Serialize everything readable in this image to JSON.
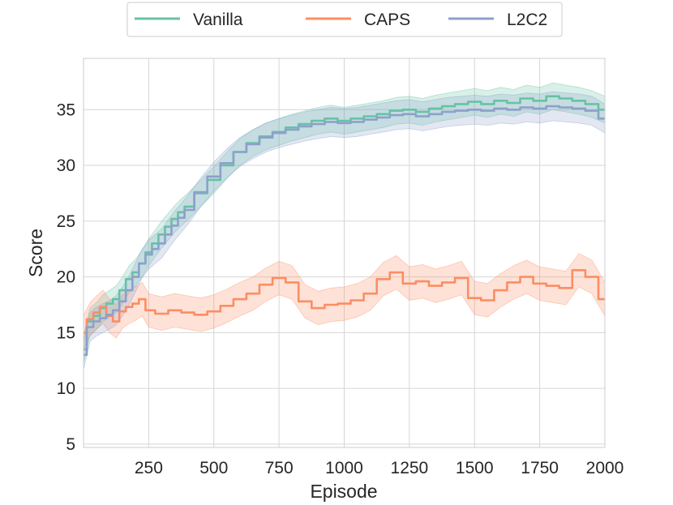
{
  "chart_data": {
    "type": "line",
    "title": "",
    "xlabel": "Episode",
    "ylabel": "Score",
    "xlim": [
      0,
      2000
    ],
    "ylim": [
      4.7,
      39.6
    ],
    "xticks": [
      250,
      500,
      750,
      1000,
      1250,
      1500,
      1750,
      2000
    ],
    "xtick_labels": [
      "250",
      "500",
      "750",
      "1000",
      "1250",
      "1500",
      "1750",
      "2000"
    ],
    "yticks": [
      5,
      10,
      15,
      20,
      25,
      30,
      35
    ],
    "ytick_labels": [
      "5",
      "10",
      "15",
      "20",
      "25",
      "30",
      "35"
    ],
    "grid": true,
    "legend_position": "top-center",
    "series": [
      {
        "name": "Vanilla",
        "color": "#66c2a5",
        "x": [
          0,
          25,
          50,
          75,
          100,
          125,
          150,
          175,
          200,
          225,
          250,
          275,
          300,
          325,
          350,
          375,
          400,
          450,
          500,
          550,
          600,
          650,
          700,
          750,
          800,
          850,
          900,
          950,
          1000,
          1050,
          1100,
          1150,
          1200,
          1250,
          1300,
          1350,
          1400,
          1450,
          1500,
          1550,
          1600,
          1650,
          1700,
          1750,
          1800,
          1850,
          1900,
          1950,
          2000
        ],
        "values": [
          13.5,
          16.0,
          16.5,
          17.2,
          17.6,
          18.0,
          18.8,
          19.8,
          20.4,
          21.2,
          22.2,
          23.0,
          23.8,
          24.5,
          25.2,
          25.8,
          26.3,
          27.5,
          28.7,
          30.0,
          31.2,
          32.0,
          32.6,
          33.0,
          33.4,
          33.7,
          34.0,
          34.2,
          34.0,
          34.2,
          34.4,
          34.6,
          34.9,
          35.0,
          34.8,
          35.1,
          35.3,
          35.5,
          35.7,
          35.5,
          35.8,
          35.6,
          36.0,
          35.8,
          36.2,
          36.0,
          35.8,
          35.5,
          35.0
        ],
        "band_width": 1.2
      },
      {
        "name": "CAPS",
        "color": "#fc8d62",
        "x": [
          0,
          25,
          50,
          75,
          100,
          125,
          150,
          175,
          200,
          225,
          250,
          300,
          350,
          400,
          450,
          500,
          550,
          600,
          650,
          700,
          750,
          800,
          850,
          900,
          950,
          1000,
          1050,
          1100,
          1150,
          1200,
          1250,
          1300,
          1350,
          1400,
          1450,
          1500,
          1550,
          1600,
          1650,
          1700,
          1750,
          1800,
          1850,
          1900,
          1950,
          2000
        ],
        "values": [
          15.0,
          16.2,
          16.8,
          17.3,
          16.5,
          16.0,
          16.9,
          17.3,
          17.6,
          18.0,
          17.0,
          16.7,
          17.0,
          16.8,
          16.6,
          16.9,
          17.4,
          18.0,
          18.5,
          19.3,
          19.9,
          19.5,
          17.8,
          17.2,
          17.5,
          17.6,
          17.9,
          18.5,
          19.8,
          20.4,
          19.4,
          19.6,
          19.2,
          19.5,
          19.9,
          18.1,
          17.9,
          18.8,
          19.5,
          20.0,
          19.4,
          19.2,
          19.0,
          20.6,
          20.0,
          18.0
        ],
        "band_width": 1.5
      },
      {
        "name": "L2C2",
        "color": "#8da0cb",
        "x": [
          0,
          25,
          50,
          75,
          100,
          125,
          150,
          175,
          200,
          225,
          250,
          275,
          300,
          325,
          350,
          375,
          400,
          450,
          500,
          550,
          600,
          650,
          700,
          750,
          800,
          850,
          900,
          950,
          1000,
          1050,
          1100,
          1150,
          1200,
          1250,
          1300,
          1350,
          1400,
          1450,
          1500,
          1550,
          1600,
          1650,
          1700,
          1750,
          1800,
          1850,
          1900,
          1950,
          2000
        ],
        "values": [
          13.0,
          15.5,
          16.0,
          16.3,
          16.6,
          17.0,
          17.8,
          18.8,
          20.0,
          21.2,
          22.0,
          22.5,
          23.0,
          23.8,
          24.6,
          25.3,
          26.0,
          27.6,
          29.0,
          30.2,
          31.2,
          31.9,
          32.5,
          32.9,
          33.2,
          33.5,
          33.7,
          33.9,
          33.8,
          33.9,
          34.1,
          34.3,
          34.5,
          34.6,
          34.4,
          34.6,
          34.8,
          34.9,
          35.0,
          34.9,
          35.1,
          35.0,
          35.2,
          35.1,
          35.3,
          35.2,
          35.1,
          34.9,
          34.2
        ],
        "band_width": 1.3
      }
    ]
  }
}
